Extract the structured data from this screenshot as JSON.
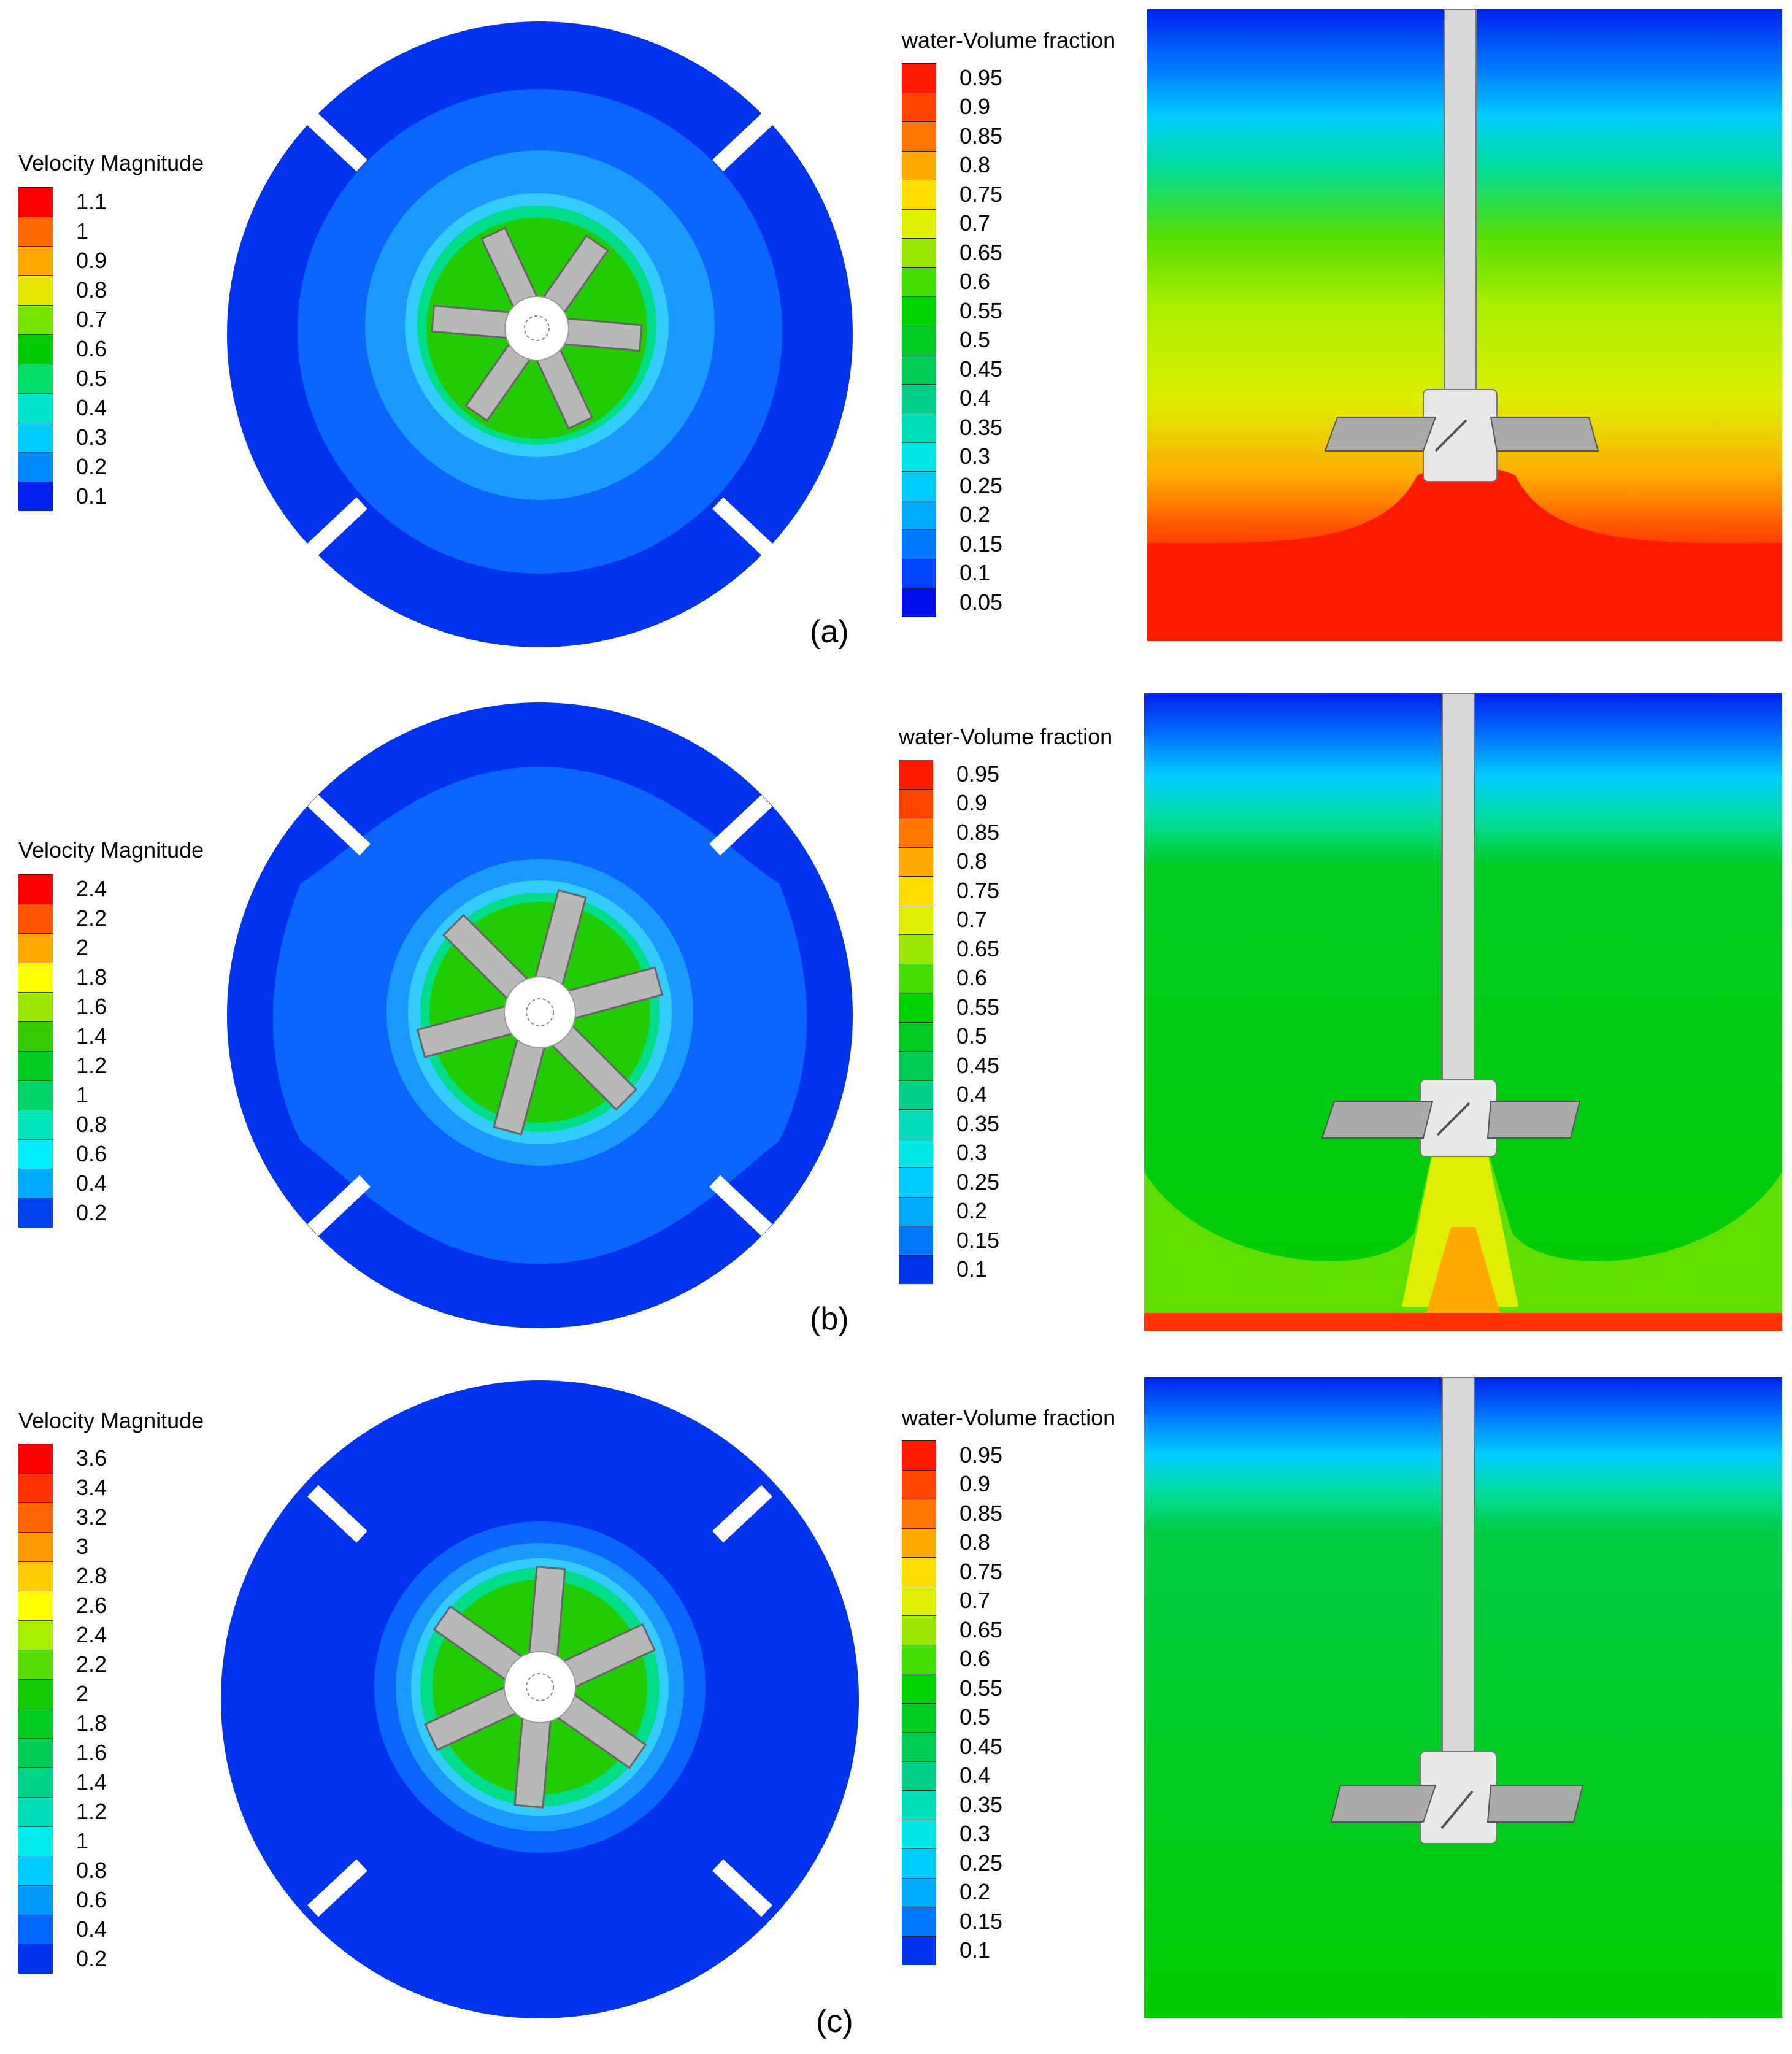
{
  "panels": [
    {
      "label": "(a)",
      "velocity_legend": {
        "title": "Velocity Magnitude",
        "ticks": [
          "1.1",
          "1",
          "0.9",
          "0.8",
          "0.7",
          "0.6",
          "0.5",
          "0.4",
          "0.3",
          "0.2",
          "0.1"
        ],
        "colors": [
          "#ff0000",
          "#ff6a00",
          "#ffaa00",
          "#e6e600",
          "#7ae600",
          "#00cc00",
          "#00dd66",
          "#00e6cc",
          "#00ccff",
          "#0088ff",
          "#0022ee"
        ]
      },
      "volume_legend": {
        "title": "water-Volume fraction",
        "ticks": [
          "0.95",
          "0.9",
          "0.85",
          "0.8",
          "0.75",
          "0.7",
          "0.65",
          "0.6",
          "0.55",
          "0.5",
          "0.45",
          "0.4",
          "0.35",
          "0.3",
          "0.25",
          "0.2",
          "0.15",
          "0.1",
          "0.05"
        ],
        "colors": [
          "#ff1a00",
          "#ff4400",
          "#ff7700",
          "#ffaa00",
          "#ffdd00",
          "#ddee00",
          "#99e600",
          "#44dd00",
          "#00d400",
          "#00cc22",
          "#00cc55",
          "#00d088",
          "#00ddbb",
          "#00e6e6",
          "#00ccff",
          "#00aaff",
          "#0077ff",
          "#0044ff",
          "#0011ee"
        ]
      }
    },
    {
      "label": "(b)",
      "velocity_legend": {
        "title": "Velocity Magnitude",
        "ticks": [
          "2.4",
          "2.2",
          "2",
          "1.8",
          "1.6",
          "1.4",
          "1.2",
          "1",
          "0.8",
          "0.6",
          "0.4",
          "0.2"
        ],
        "colors": [
          "#ff0000",
          "#ff5500",
          "#ffaa00",
          "#ffff00",
          "#99e600",
          "#33cc00",
          "#00cc22",
          "#00d466",
          "#00e6bb",
          "#00eeff",
          "#00aaff",
          "#0044ee"
        ]
      },
      "volume_legend": {
        "title": "water-Volume fraction",
        "ticks": [
          "0.95",
          "0.9",
          "0.85",
          "0.8",
          "0.75",
          "0.7",
          "0.65",
          "0.6",
          "0.55",
          "0.5",
          "0.45",
          "0.4",
          "0.35",
          "0.3",
          "0.25",
          "0.2",
          "0.15",
          "0.1"
        ],
        "colors": [
          "#ff1a00",
          "#ff4400",
          "#ff7700",
          "#ffaa00",
          "#ffdd00",
          "#ddee00",
          "#99e600",
          "#44dd00",
          "#00d400",
          "#00cc22",
          "#00cc55",
          "#00d088",
          "#00ddbb",
          "#00e6e6",
          "#00ccff",
          "#00aaff",
          "#0077ff",
          "#0033ee"
        ]
      }
    },
    {
      "label": "(c)",
      "velocity_legend": {
        "title": "Velocity Magnitude",
        "ticks": [
          "3.6",
          "3.4",
          "3.2",
          "3",
          "2.8",
          "2.6",
          "2.4",
          "2.2",
          "2",
          "1.8",
          "1.6",
          "1.4",
          "1.2",
          "1",
          "0.8",
          "0.6",
          "0.4",
          "0.2"
        ],
        "colors": [
          "#ff0000",
          "#ff3300",
          "#ff6600",
          "#ff9900",
          "#ffcc00",
          "#ffff00",
          "#aaee00",
          "#55dd00",
          "#11cc00",
          "#00cc22",
          "#00cc55",
          "#00d488",
          "#00ddbb",
          "#00eeee",
          "#00ccff",
          "#0099ff",
          "#0066ff",
          "#0033ee"
        ]
      },
      "volume_legend": {
        "title": "water-Volume fraction",
        "ticks": [
          "0.95",
          "0.9",
          "0.85",
          "0.8",
          "0.75",
          "0.7",
          "0.65",
          "0.6",
          "0.55",
          "0.5",
          "0.45",
          "0.4",
          "0.35",
          "0.3",
          "0.25",
          "0.2",
          "0.15",
          "0.1"
        ],
        "colors": [
          "#ff1a00",
          "#ff4400",
          "#ff7700",
          "#ffaa00",
          "#ffdd00",
          "#ddee00",
          "#99e600",
          "#44dd00",
          "#00d400",
          "#00cc22",
          "#00cc55",
          "#00d088",
          "#00ddbb",
          "#00e6e6",
          "#00ccff",
          "#00aaff",
          "#0077ff",
          "#0033ee"
        ]
      }
    }
  ]
}
